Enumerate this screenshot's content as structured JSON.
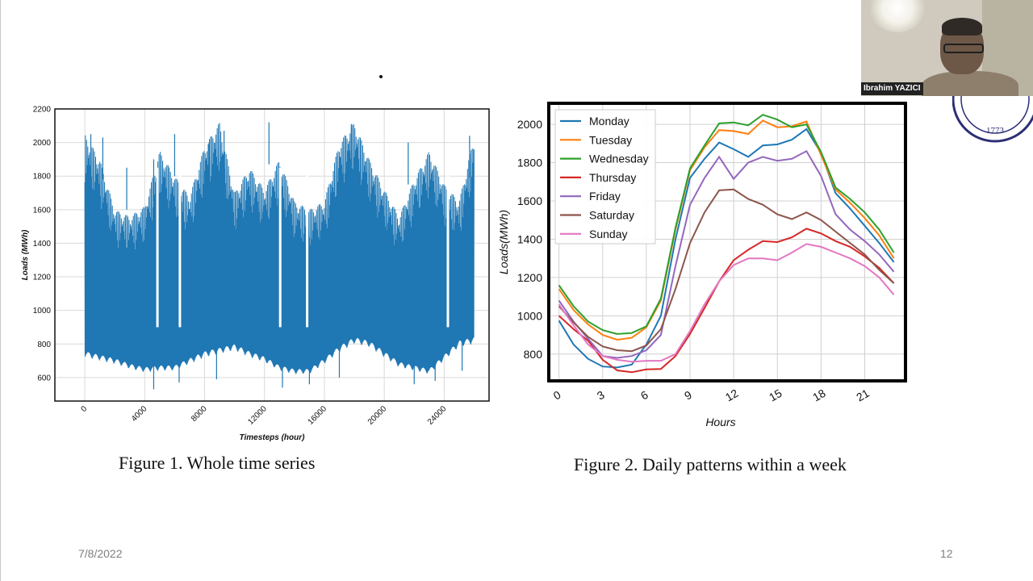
{
  "slide": {
    "figure1_caption": "Figure 1. Whole time series",
    "figure2_caption": "Figure 2. Daily patterns within a week",
    "date": "7/8/2022",
    "page_number": "12"
  },
  "webcam": {
    "participant_name": "Ibrahim YAZICI"
  },
  "seal": {
    "year": "1773"
  },
  "chart_data": [
    {
      "type": "line",
      "xlabel": "Timesteps (hour)",
      "ylabel": "Loads (MWh)",
      "xlim": [
        -2000,
        27000
      ],
      "ylim": [
        460,
        2200
      ],
      "xticks": [
        0,
        4000,
        8000,
        12000,
        16000,
        20000,
        24000
      ],
      "yticks": [
        600,
        800,
        1000,
        1200,
        1400,
        1600,
        1800,
        2000,
        2200
      ],
      "grid": true,
      "color": "#1f77b4",
      "series": [
        {
          "x": [
            0,
            1000,
            2000,
            3000,
            4000,
            5000,
            6000,
            7000,
            8000,
            9000,
            10000,
            11000,
            12000,
            13000,
            14000,
            15000,
            16000,
            17000,
            18000,
            19000,
            20000,
            21000,
            22000,
            23000,
            24000,
            25000,
            26000
          ],
          "upper": [
            2050,
            1900,
            1600,
            1560,
            1620,
            1950,
            1800,
            1680,
            1980,
            2120,
            1700,
            1850,
            1720,
            1900,
            1650,
            1600,
            1650,
            2000,
            2120,
            1900,
            1720,
            1560,
            1780,
            1950,
            1750,
            1650,
            2040
          ],
          "lower": [
            720,
            700,
            680,
            650,
            630,
            640,
            640,
            680,
            720,
            740,
            760,
            720,
            690,
            640,
            620,
            620,
            680,
            750,
            800,
            780,
            720,
            660,
            640,
            620,
            700,
            780,
            800
          ],
          "upper_extremes": [
            2050,
            2030,
            1850,
            1900,
            2050,
            2000,
            2070,
            2120,
            2110,
            2000,
            2040
          ],
          "lower_extremes": [
            530,
            570,
            590,
            540,
            560,
            600,
            560,
            580,
            640
          ]
        }
      ]
    },
    {
      "type": "line",
      "xlabel": "Hours",
      "ylabel": "Loads(MWh)",
      "xlim": [
        -0.7,
        23.8
      ],
      "ylim": [
        660,
        2110
      ],
      "xticks": [
        0,
        3,
        6,
        9,
        12,
        15,
        18,
        21
      ],
      "yticks": [
        800,
        1000,
        1200,
        1400,
        1600,
        1800,
        2000
      ],
      "grid": true,
      "legend": "top-left",
      "x": [
        0,
        1,
        2,
        3,
        4,
        5,
        6,
        7,
        8,
        9,
        10,
        11,
        12,
        13,
        14,
        15,
        16,
        17,
        18,
        19,
        20,
        21,
        22,
        23
      ],
      "series": [
        {
          "name": "Monday",
          "color": "#1f77b4",
          "values": [
            975,
            850,
            775,
            735,
            730,
            745,
            850,
            1000,
            1400,
            1720,
            1820,
            1905,
            1870,
            1830,
            1890,
            1895,
            1920,
            1975,
            1850,
            1640,
            1560,
            1470,
            1380,
            1280
          ]
        },
        {
          "name": "Tuesday",
          "color": "#ff7f0e",
          "values": [
            1140,
            1030,
            955,
            900,
            875,
            885,
            940,
            1080,
            1450,
            1760,
            1880,
            1970,
            1965,
            1950,
            2020,
            1985,
            1990,
            2015,
            1840,
            1660,
            1590,
            1510,
            1420,
            1300
          ]
        },
        {
          "name": "Wednesday",
          "color": "#2ca02c",
          "values": [
            1160,
            1050,
            970,
            925,
            905,
            910,
            945,
            1090,
            1460,
            1770,
            1890,
            2005,
            2010,
            1995,
            2050,
            2025,
            1985,
            2000,
            1855,
            1670,
            1610,
            1540,
            1450,
            1330
          ]
        },
        {
          "name": "Thursday",
          "color": "#d62728",
          "values": [
            1000,
            930,
            870,
            770,
            715,
            705,
            720,
            722,
            790,
            905,
            1040,
            1180,
            1290,
            1345,
            1390,
            1385,
            1410,
            1455,
            1430,
            1390,
            1360,
            1310,
            1250,
            1170
          ]
        },
        {
          "name": "Friday",
          "color": "#9467bd",
          "values": [
            1080,
            970,
            880,
            790,
            780,
            790,
            820,
            900,
            1260,
            1580,
            1720,
            1830,
            1715,
            1800,
            1830,
            1810,
            1820,
            1860,
            1730,
            1530,
            1450,
            1390,
            1320,
            1230
          ]
        },
        {
          "name": "Saturday",
          "color": "#8c564b",
          "values": [
            1050,
            965,
            890,
            840,
            820,
            815,
            845,
            930,
            1140,
            1380,
            1540,
            1655,
            1660,
            1610,
            1580,
            1530,
            1505,
            1540,
            1500,
            1440,
            1380,
            1320,
            1240,
            1170
          ]
        },
        {
          "name": "Sunday",
          "color": "#e377c2",
          "values": [
            1060,
            950,
            850,
            790,
            770,
            760,
            765,
            765,
            800,
            920,
            1060,
            1180,
            1265,
            1300,
            1300,
            1290,
            1330,
            1375,
            1360,
            1330,
            1300,
            1260,
            1200,
            1110
          ]
        }
      ]
    }
  ]
}
